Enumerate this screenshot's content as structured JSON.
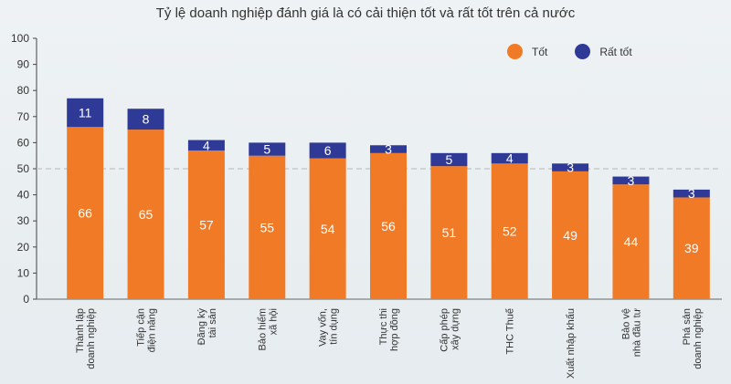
{
  "chart_data": {
    "type": "bar",
    "stacked": true,
    "title": "Tỷ lệ doanh nghiệp đánh giá là có cải thiện tốt và rất tốt trên cả nước",
    "categories": [
      [
        "Thành lập",
        "doanh nghiệp"
      ],
      [
        "Tiếp cận",
        "điện năng"
      ],
      [
        "Đăng ký",
        "tài sản"
      ],
      [
        "Bảo hiểm",
        "xã hội"
      ],
      [
        "Vay vốn,",
        "tín dụng"
      ],
      [
        "Thực thi",
        "hợp đồng"
      ],
      [
        "Cấp phép",
        "xây dựng"
      ],
      [
        "THC Thuế"
      ],
      [
        "Xuất nhập khẩu"
      ],
      [
        "Bảo vệ",
        "nhà đầu tư"
      ],
      [
        "Phá sản",
        "doanh nghiệp"
      ]
    ],
    "series": [
      {
        "name": "Tốt",
        "color": "#f07a26",
        "values": [
          66,
          65,
          57,
          55,
          54,
          56,
          51,
          52,
          49,
          44,
          39
        ]
      },
      {
        "name": "Rất tốt",
        "color": "#2f3a96",
        "values": [
          11,
          8,
          4,
          5,
          6,
          3,
          5,
          4,
          3,
          3,
          3
        ]
      }
    ],
    "ylim": [
      0,
      100
    ],
    "yticks": [
      0,
      10,
      20,
      30,
      40,
      50,
      60,
      70,
      80,
      90,
      100
    ],
    "reference_line": 50,
    "legend_position": "top-right",
    "grid": false
  }
}
